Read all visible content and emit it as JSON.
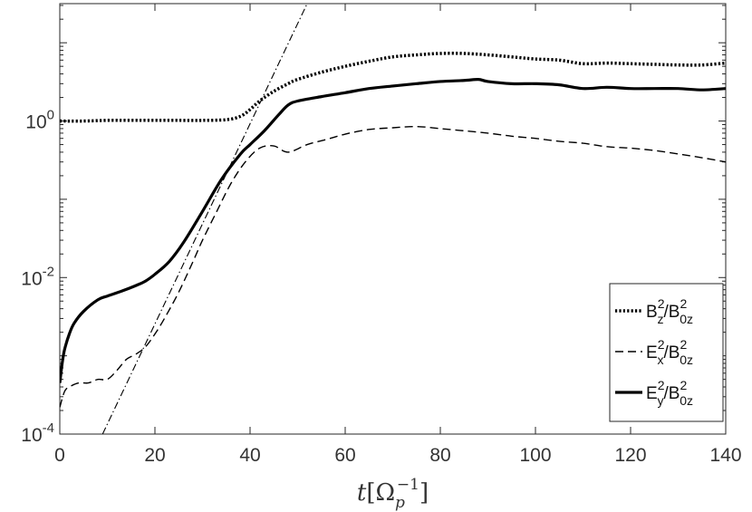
{
  "chart_data": {
    "type": "line",
    "title": "",
    "xlabel": "t[Ω_p^-1]",
    "ylabel": "",
    "xlim": [
      0,
      140
    ],
    "ylim_log10": [
      -4,
      1.5
    ],
    "y_scale": "log",
    "x_ticks": [
      0,
      20,
      40,
      60,
      80,
      100,
      120,
      140
    ],
    "x_tick_labels": [
      "0",
      "20",
      "40",
      "60",
      "80",
      "100",
      "120",
      "140"
    ],
    "y_ticks_log10": [
      -4,
      -2,
      0
    ],
    "y_tick_labels": [
      {
        "base": "10",
        "exp": "-4"
      },
      {
        "base": "10",
        "exp": "-2"
      },
      {
        "base": "10",
        "exp": "0"
      }
    ],
    "grid": false,
    "legend_position": "bottom-right",
    "series": [
      {
        "name": "B_z^2/B_0z^2",
        "style": "dotted",
        "x": [
          0,
          5,
          10,
          15,
          20,
          25,
          30,
          35,
          38,
          40,
          42,
          45,
          48,
          50,
          55,
          60,
          65,
          70,
          75,
          80,
          85,
          90,
          95,
          100,
          105,
          110,
          115,
          120,
          125,
          130,
          135,
          140
        ],
        "y": [
          1.0,
          1.0,
          1.02,
          1.02,
          1.02,
          1.02,
          1.02,
          1.04,
          1.15,
          1.4,
          1.8,
          2.4,
          3.0,
          3.4,
          4.2,
          5.0,
          5.8,
          6.6,
          7.0,
          7.3,
          7.3,
          7.0,
          6.6,
          6.2,
          6.0,
          5.4,
          5.5,
          5.4,
          5.3,
          5.2,
          5.2,
          5.5
        ]
      },
      {
        "name": "E_x^2/B_0z^2",
        "style": "dashed",
        "x": [
          0,
          1,
          2,
          4,
          6,
          8,
          10,
          12,
          14,
          16,
          18,
          20,
          22,
          25,
          28,
          30,
          33,
          36,
          39,
          42,
          45,
          48,
          52,
          56,
          60,
          65,
          70,
          75,
          80,
          85,
          90,
          95,
          100,
          105,
          110,
          115,
          120,
          125,
          130,
          135,
          140
        ],
        "y": [
          0.00022,
          0.00035,
          0.0004,
          0.00045,
          0.00045,
          0.0005,
          0.0005,
          0.00065,
          0.0009,
          0.00105,
          0.0013,
          0.0019,
          0.003,
          0.0065,
          0.016,
          0.03,
          0.07,
          0.16,
          0.3,
          0.45,
          0.48,
          0.4,
          0.5,
          0.58,
          0.68,
          0.78,
          0.82,
          0.85,
          0.8,
          0.75,
          0.7,
          0.64,
          0.6,
          0.55,
          0.52,
          0.47,
          0.45,
          0.42,
          0.38,
          0.34,
          0.3
        ]
      },
      {
        "name": "E_y^2/B_0z^2",
        "style": "solid",
        "x": [
          0,
          0.5,
          1,
          2,
          3,
          5,
          8,
          10,
          13,
          16,
          18,
          20,
          23,
          26,
          30,
          34,
          38,
          40,
          43,
          46,
          48,
          50,
          55,
          60,
          65,
          70,
          75,
          80,
          85,
          88,
          90,
          95,
          100,
          105,
          110,
          115,
          120,
          125,
          130,
          135,
          140
        ],
        "y": [
          0.00045,
          0.0008,
          0.0012,
          0.0019,
          0.0026,
          0.0037,
          0.0052,
          0.0058,
          0.0067,
          0.0079,
          0.009,
          0.011,
          0.016,
          0.028,
          0.07,
          0.18,
          0.38,
          0.5,
          0.75,
          1.2,
          1.6,
          1.8,
          2.05,
          2.3,
          2.6,
          2.8,
          3.0,
          3.2,
          3.3,
          3.4,
          3.2,
          3.0,
          3.0,
          2.9,
          2.6,
          2.7,
          2.6,
          2.6,
          2.6,
          2.5,
          2.6
        ]
      },
      {
        "name": "",
        "style": "dashdot",
        "x": [
          9,
          52
        ],
        "y": [
          0.0001,
          31.6
        ]
      }
    ],
    "legend": [
      {
        "style": "dotted",
        "base": "B",
        "sup": "2",
        "sub": "z",
        "den": "B",
        "den_sup": "2",
        "den_sub": "0z"
      },
      {
        "style": "dashed",
        "base": "E",
        "sup": "2",
        "sub": "x",
        "den": "B",
        "den_sup": "2",
        "den_sub": "0z"
      },
      {
        "style": "solid",
        "base": "E",
        "sup": "2",
        "sub": "y",
        "den": "B",
        "den_sup": "2",
        "den_sub": "0z"
      }
    ]
  }
}
